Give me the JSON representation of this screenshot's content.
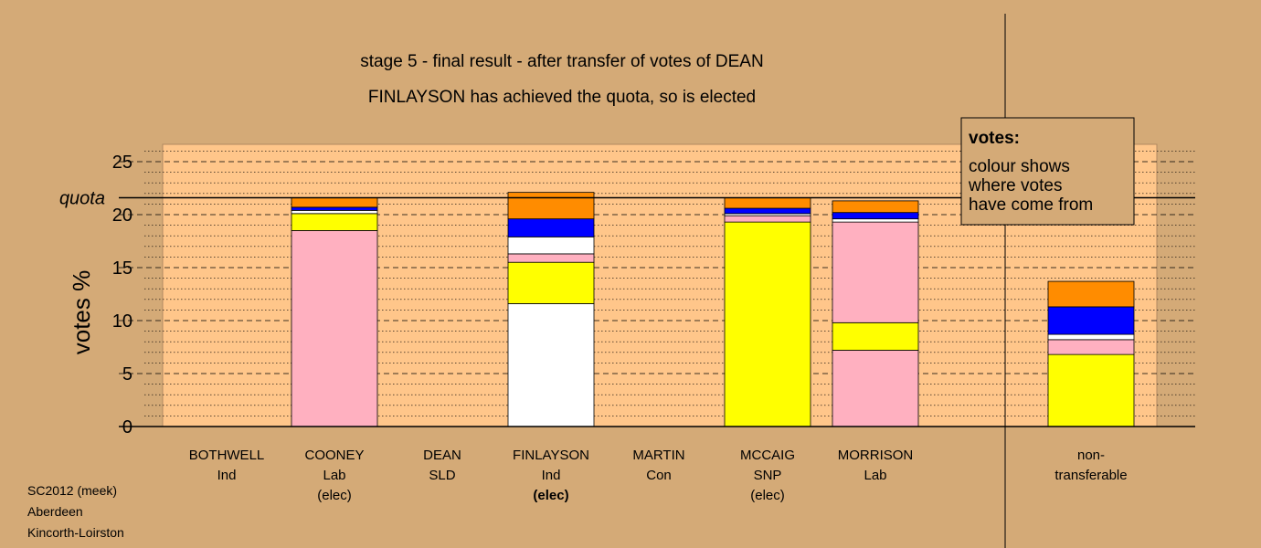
{
  "chart_data": {
    "type": "bar",
    "stacked": true,
    "title": "stage 5 - final result - after transfer of votes of DEAN",
    "subtitle": "FINLAYSON has achieved the quota, so is elected",
    "ylabel": "votes %",
    "ylim": [
      0,
      26.5
    ],
    "yticks": [
      0,
      5,
      10,
      15,
      20,
      25
    ],
    "quota": 21.6,
    "quota_label": "quota",
    "grid": true,
    "categories": [
      {
        "name": "BOTHWELL",
        "party": "Ind",
        "status": ""
      },
      {
        "name": "COONEY",
        "party": "Lab",
        "status": "(elec)"
      },
      {
        "name": "DEAN",
        "party": "SLD",
        "status": ""
      },
      {
        "name": "FINLAYSON",
        "party": "Ind",
        "status": "(elec)"
      },
      {
        "name": "MARTIN",
        "party": "Con",
        "status": ""
      },
      {
        "name": "MCCAIG",
        "party": "SNP",
        "status": "(elec)"
      },
      {
        "name": "MORRISON",
        "party": "Lab",
        "status": ""
      },
      {
        "name": "non-",
        "party": "transferable",
        "status": ""
      }
    ],
    "series_colors": {
      "white": "#ffffff",
      "yellow": "#ffff00",
      "pink": "#ffb0c0",
      "blue": "#0000ff",
      "orange": "#ff8c00"
    },
    "stacks": [
      [],
      [
        {
          "color": "pink",
          "value": 18.5
        },
        {
          "color": "yellow",
          "value": 1.6
        },
        {
          "color": "white",
          "value": 0.3
        },
        {
          "color": "blue",
          "value": 0.3
        },
        {
          "color": "orange",
          "value": 0.9
        }
      ],
      [],
      [
        {
          "color": "white",
          "value": 11.6
        },
        {
          "color": "yellow",
          "value": 3.9
        },
        {
          "color": "pink",
          "value": 0.8
        },
        {
          "color": "white",
          "value": 1.6
        },
        {
          "color": "blue",
          "value": 1.7
        },
        {
          "color": "orange",
          "value": 2.5
        }
      ],
      [],
      [
        {
          "color": "yellow",
          "value": 19.3
        },
        {
          "color": "pink",
          "value": 0.6
        },
        {
          "color": "white",
          "value": 0.2
        },
        {
          "color": "blue",
          "value": 0.5
        },
        {
          "color": "orange",
          "value": 1.0
        }
      ],
      [
        {
          "color": "pink",
          "value": 7.2
        },
        {
          "color": "yellow",
          "value": 2.6
        },
        {
          "color": "pink",
          "value": 9.5
        },
        {
          "color": "white",
          "value": 0.3
        },
        {
          "color": "blue",
          "value": 0.6
        },
        {
          "color": "orange",
          "value": 1.1
        }
      ],
      [
        {
          "color": "yellow",
          "value": 6.8
        },
        {
          "color": "pink",
          "value": 1.4
        },
        {
          "color": "white",
          "value": 0.5
        },
        {
          "color": "blue",
          "value": 2.6
        },
        {
          "color": "orange",
          "value": 2.4
        }
      ]
    ],
    "legend": {
      "placement": "top-right",
      "title": "votes:",
      "lines": [
        "colour shows",
        "where votes",
        "have come from"
      ]
    }
  },
  "footer": {
    "lines": [
      "SC2012 (meek)",
      "Aberdeen",
      "Kincorth-Loirston"
    ]
  }
}
